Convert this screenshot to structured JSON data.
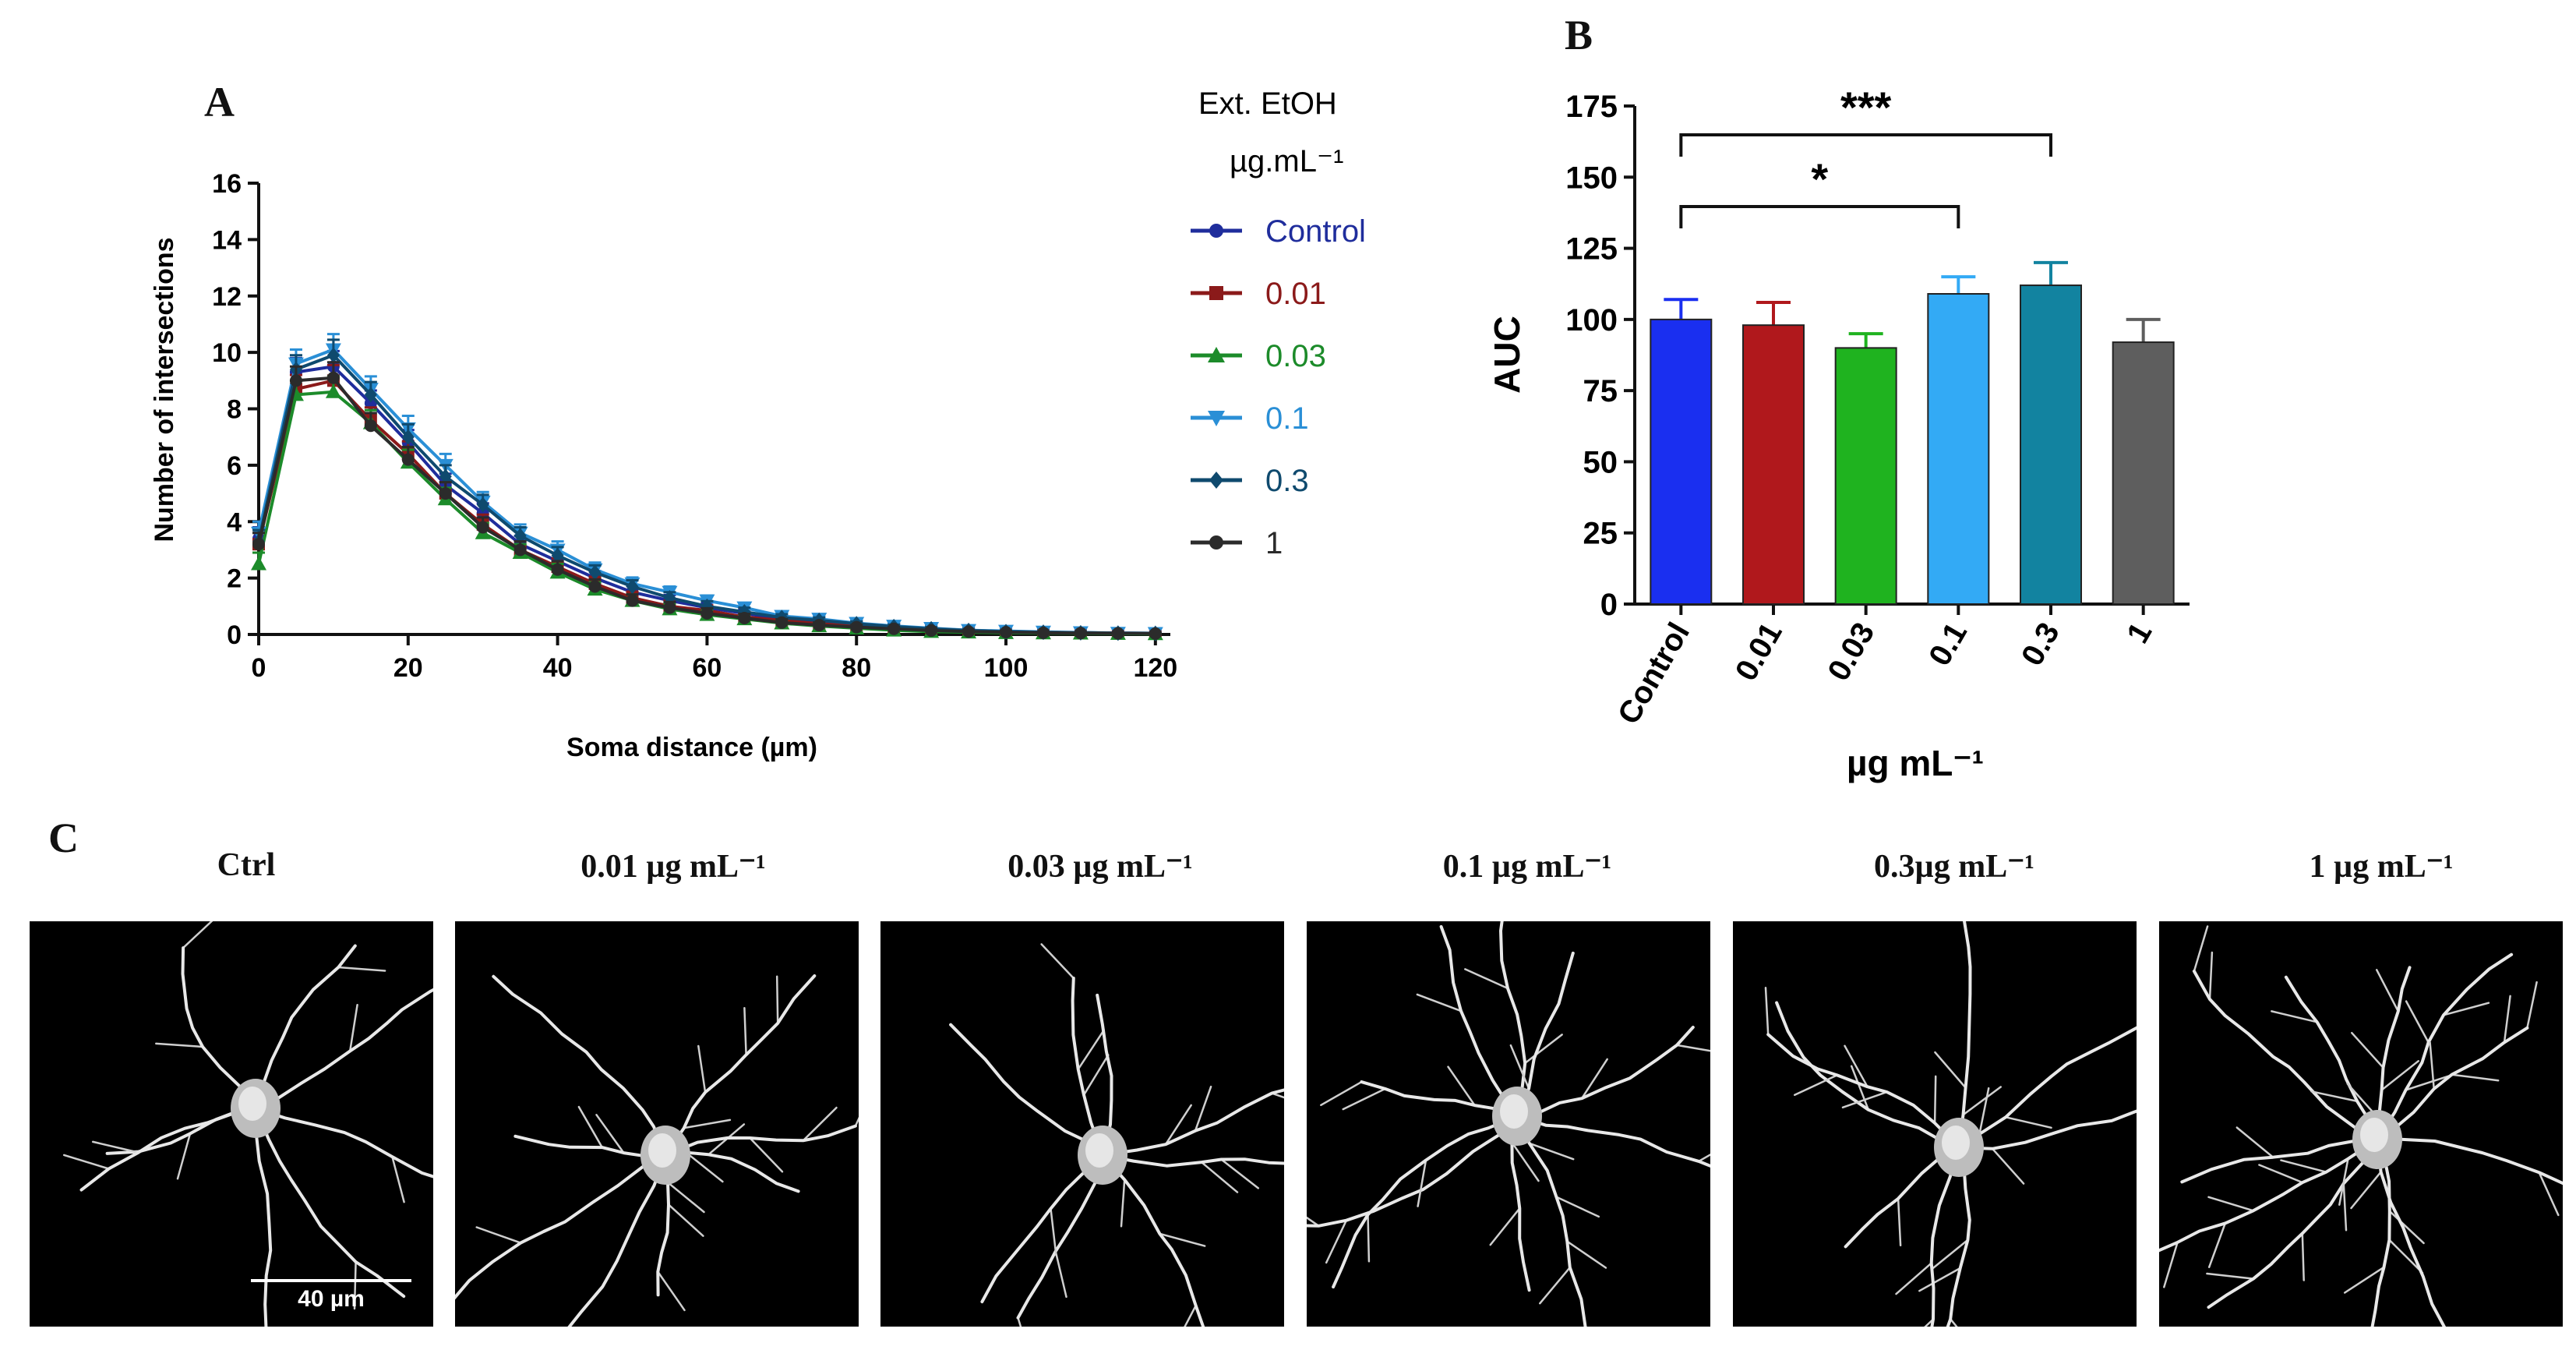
{
  "panels": {
    "a": "A",
    "b": "B",
    "c": "C"
  },
  "chart_data": [
    {
      "type": "line",
      "panel": "A",
      "title": "",
      "xlabel": "Soma distance (µm)",
      "ylabel": "Number of intersections",
      "xlim": [
        0,
        122
      ],
      "ylim": [
        0,
        16
      ],
      "xticks": [
        0,
        20,
        40,
        60,
        80,
        100,
        120
      ],
      "yticks": [
        0,
        2,
        4,
        6,
        8,
        10,
        12,
        14,
        16
      ],
      "x": [
        0,
        5,
        10,
        15,
        20,
        25,
        30,
        35,
        40,
        45,
        50,
        55,
        60,
        65,
        70,
        75,
        80,
        85,
        90,
        95,
        100,
        105,
        110,
        115,
        120
      ],
      "legend": {
        "title_line1": "Ext. EtOH",
        "title_line2": "µg.mL⁻¹",
        "placement": "right"
      },
      "series": [
        {
          "name": "Control",
          "color": "#1f2d9c",
          "marker": "circle",
          "values": [
            3.4,
            9.3,
            9.5,
            8.2,
            6.8,
            5.3,
            4.3,
            3.2,
            2.6,
            2.0,
            1.5,
            1.2,
            0.95,
            0.75,
            0.55,
            0.45,
            0.35,
            0.28,
            0.2,
            0.15,
            0.1,
            0.08,
            0.06,
            0.05,
            0.04
          ]
        },
        {
          "name": "0.01",
          "color": "#8b1a1a",
          "marker": "square",
          "values": [
            3.2,
            8.7,
            9.0,
            7.6,
            6.4,
            5.0,
            3.9,
            3.0,
            2.4,
            1.8,
            1.3,
            1.0,
            0.85,
            0.62,
            0.5,
            0.38,
            0.3,
            0.22,
            0.16,
            0.12,
            0.09,
            0.07,
            0.05,
            0.04,
            0.03
          ]
        },
        {
          "name": "0.03",
          "color": "#1c8b2a",
          "marker": "triangle-up",
          "values": [
            2.5,
            8.5,
            8.6,
            7.5,
            6.1,
            4.8,
            3.6,
            2.9,
            2.2,
            1.6,
            1.2,
            0.9,
            0.7,
            0.55,
            0.4,
            0.3,
            0.22,
            0.15,
            0.1,
            0.08,
            0.06,
            0.05,
            0.04,
            0.03,
            0.02
          ]
        },
        {
          "name": "0.1",
          "color": "#2a8fd6",
          "marker": "triangle-down",
          "values": [
            3.6,
            9.6,
            10.1,
            8.7,
            7.3,
            6.0,
            4.7,
            3.6,
            3.0,
            2.3,
            1.8,
            1.5,
            1.2,
            0.95,
            0.65,
            0.55,
            0.4,
            0.3,
            0.22,
            0.15,
            0.12,
            0.09,
            0.07,
            0.05,
            0.04
          ]
        },
        {
          "name": "0.3",
          "color": "#0f4a6e",
          "marker": "diamond",
          "values": [
            3.3,
            9.4,
            9.9,
            8.5,
            7.0,
            5.6,
            4.6,
            3.5,
            2.8,
            2.2,
            1.7,
            1.3,
            1.0,
            0.8,
            0.6,
            0.5,
            0.38,
            0.28,
            0.2,
            0.14,
            0.1,
            0.08,
            0.06,
            0.05,
            0.04
          ]
        },
        {
          "name": "1",
          "color": "#2b2b2b",
          "marker": "circle",
          "values": [
            3.2,
            9.0,
            9.1,
            7.4,
            6.2,
            5.0,
            3.8,
            3.0,
            2.3,
            1.7,
            1.2,
            0.95,
            0.75,
            0.58,
            0.42,
            0.33,
            0.26,
            0.2,
            0.14,
            0.1,
            0.08,
            0.06,
            0.05,
            0.04,
            0.03
          ]
        }
      ],
      "error": [
        0.4,
        0.5,
        0.55,
        0.45,
        0.45,
        0.4,
        0.35,
        0.3,
        0.3,
        0.25,
        0.22,
        0.2,
        0.18,
        0.15,
        0.12,
        0.1,
        0.08,
        0.07,
        0.06,
        0.05,
        0.04,
        0.03,
        0.03,
        0.02,
        0.02
      ]
    },
    {
      "type": "bar",
      "panel": "B",
      "title": "",
      "ylabel": "AUC",
      "xlabel": "µg mL⁻¹",
      "ylim": [
        0,
        175
      ],
      "yticks": [
        0,
        25,
        50,
        75,
        100,
        125,
        150,
        175
      ],
      "categories": [
        "Control",
        "0.01",
        "0.03",
        "0.1",
        "0.3",
        "1"
      ],
      "values": [
        100,
        98,
        90,
        109,
        112,
        92
      ],
      "errors": [
        7,
        8,
        5,
        6,
        8,
        8
      ],
      "colors": [
        "#1a2ff0",
        "#b0181c",
        "#1fb31f",
        "#33aaf5",
        "#1283a0",
        "#5e5e5e"
      ],
      "significance": [
        {
          "from": "Control",
          "to": "0.1",
          "label": "*"
        },
        {
          "from": "Control",
          "to": "0.3",
          "label": "***"
        }
      ]
    }
  ],
  "images": {
    "titles": [
      "Ctrl",
      "0.01 µg mL⁻¹",
      "0.03 µg mL⁻¹",
      "0.1 µg mL⁻¹",
      "0.3µg mL⁻¹",
      "1 µg mL⁻¹"
    ],
    "scale_bar": "40 µm"
  }
}
